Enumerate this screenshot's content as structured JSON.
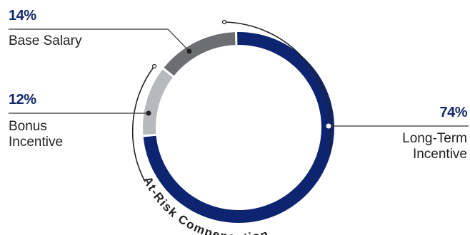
{
  "chart_data": {
    "type": "donut",
    "slices": [
      {
        "label": "Long-Term Incentive",
        "value": 74,
        "pct_label": "74%",
        "color": "#0d2470"
      },
      {
        "label": "Bonus Incentive",
        "value": 12,
        "pct_label": "12%",
        "color": "#b8b9bd"
      },
      {
        "label": "Base Salary",
        "value": 14,
        "pct_label": "14%",
        "color": "#6d6e72"
      }
    ],
    "arc_annotation": "At-Risk Compensation",
    "colors": {
      "text_pct": "#13286b",
      "text_label": "#222222",
      "lines": "#333333"
    }
  },
  "labels": {
    "base_pct": "14%",
    "base_label": "Base Salary",
    "bonus_pct": "12%",
    "bonus_label_1": "Bonus",
    "bonus_label_2": "Incentive",
    "lti_pct": "74%",
    "lti_label_1": "Long-Term",
    "lti_label_2": "Incentive"
  }
}
